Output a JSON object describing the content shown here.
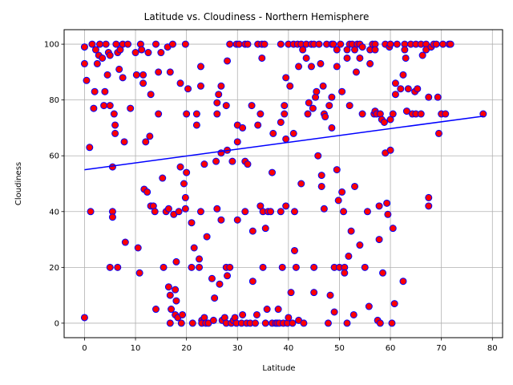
{
  "chart_data": {
    "type": "scatter",
    "title": "Latitude vs. Cloudiness - Northern Hemisphere",
    "xlabel": "Latitude",
    "ylabel": "Cloudiness",
    "xlim": [
      -4,
      82
    ],
    "ylim": [
      -5.2,
      105.2
    ],
    "xticks": [
      0,
      10,
      20,
      30,
      40,
      50,
      60,
      70,
      80
    ],
    "yticks": [
      0,
      20,
      40,
      60,
      80,
      100
    ],
    "grid": true,
    "marker_fill": "#ff0000",
    "marker_edge": "#0000ff",
    "line_color": "#0000ff",
    "regression": {
      "x": [
        0,
        78.2
      ],
      "y": [
        55,
        74.2
      ]
    },
    "points": [
      [
        0,
        99
      ],
      [
        0,
        93
      ],
      [
        0,
        2
      ],
      [
        0.4,
        87
      ],
      [
        1,
        63
      ],
      [
        1.2,
        40
      ],
      [
        1.5,
        100
      ],
      [
        1.8,
        77
      ],
      [
        2,
        83
      ],
      [
        2.2,
        98
      ],
      [
        2.5,
        93
      ],
      [
        2.8,
        96
      ],
      [
        3,
        100
      ],
      [
        3.5,
        95
      ],
      [
        3.8,
        78
      ],
      [
        4,
        83
      ],
      [
        4.2,
        100
      ],
      [
        4.5,
        89
      ],
      [
        4.7,
        97
      ],
      [
        5,
        96
      ],
      [
        5,
        78
      ],
      [
        5,
        20
      ],
      [
        5.5,
        56
      ],
      [
        5.5,
        40
      ],
      [
        5.5,
        38
      ],
      [
        5.8,
        75
      ],
      [
        6,
        71
      ],
      [
        6,
        68
      ],
      [
        6.2,
        100
      ],
      [
        6.5,
        97
      ],
      [
        6.5,
        20
      ],
      [
        6.8,
        91
      ],
      [
        7,
        98
      ],
      [
        7.5,
        100
      ],
      [
        7.5,
        88
      ],
      [
        7.8,
        65
      ],
      [
        8,
        29
      ],
      [
        8.5,
        100
      ],
      [
        9,
        77
      ],
      [
        10,
        97
      ],
      [
        10.2,
        89
      ],
      [
        10.5,
        27
      ],
      [
        10.8,
        18
      ],
      [
        11,
        100
      ],
      [
        11.2,
        98
      ],
      [
        11.5,
        89
      ],
      [
        11.5,
        86
      ],
      [
        11.7,
        48
      ],
      [
        12,
        65
      ],
      [
        12.3,
        47
      ],
      [
        12.5,
        97
      ],
      [
        12.8,
        67
      ],
      [
        13,
        82
      ],
      [
        13,
        42
      ],
      [
        13.5,
        42
      ],
      [
        13.8,
        40
      ],
      [
        14,
        100
      ],
      [
        14,
        5
      ],
      [
        14.5,
        90
      ],
      [
        14.5,
        75
      ],
      [
        15,
        97
      ],
      [
        15.3,
        52
      ],
      [
        15.5,
        20
      ],
      [
        16,
        40
      ],
      [
        16.3,
        99
      ],
      [
        16.5,
        41
      ],
      [
        16.8,
        90
      ],
      [
        16.5,
        13
      ],
      [
        16.8,
        10
      ],
      [
        16.8,
        0
      ],
      [
        17,
        5
      ],
      [
        17.3,
        100
      ],
      [
        17.5,
        39
      ],
      [
        17.8,
        12
      ],
      [
        17.8,
        3
      ],
      [
        18,
        22
      ],
      [
        18,
        8
      ],
      [
        18.3,
        2
      ],
      [
        18.5,
        40
      ],
      [
        18.8,
        86
      ],
      [
        18.8,
        56
      ],
      [
        19,
        0
      ],
      [
        19.2,
        3
      ],
      [
        19.5,
        50
      ],
      [
        19.8,
        45
      ],
      [
        19.8,
        41
      ],
      [
        19.8,
        100
      ],
      [
        20,
        75
      ],
      [
        20,
        54
      ],
      [
        20.3,
        84
      ],
      [
        21,
        36
      ],
      [
        21,
        20
      ],
      [
        21.2,
        0
      ],
      [
        21.5,
        27
      ],
      [
        22,
        75
      ],
      [
        22,
        71
      ],
      [
        22.5,
        23
      ],
      [
        22.5,
        20
      ],
      [
        22.8,
        92
      ],
      [
        22.8,
        85
      ],
      [
        22.8,
        40
      ],
      [
        23,
        1
      ],
      [
        23,
        0
      ],
      [
        23.5,
        2
      ],
      [
        23.5,
        57
      ],
      [
        23.8,
        0
      ],
      [
        24,
        31
      ],
      [
        24.3,
        0
      ],
      [
        25,
        16
      ],
      [
        25.3,
        1
      ],
      [
        25.5,
        9
      ],
      [
        25.8,
        58
      ],
      [
        26,
        79
      ],
      [
        26,
        75
      ],
      [
        26,
        41
      ],
      [
        26.3,
        82
      ],
      [
        26.5,
        14
      ],
      [
        26.8,
        85
      ],
      [
        26.8,
        61
      ],
      [
        26.8,
        37
      ],
      [
        27,
        1
      ],
      [
        27.5,
        2
      ],
      [
        27.8,
        0
      ],
      [
        27.8,
        78
      ],
      [
        27.8,
        20
      ],
      [
        28,
        94
      ],
      [
        28,
        62
      ],
      [
        28,
        17
      ],
      [
        28.5,
        100
      ],
      [
        28.5,
        20
      ],
      [
        28.8,
        0
      ],
      [
        29,
        58
      ],
      [
        29.2,
        1
      ],
      [
        29.5,
        2
      ],
      [
        29.8,
        0
      ],
      [
        29.8,
        100
      ],
      [
        30,
        71
      ],
      [
        30,
        65
      ],
      [
        30,
        37
      ],
      [
        30.3,
        100
      ],
      [
        30.8,
        0
      ],
      [
        31,
        70
      ],
      [
        31,
        3
      ],
      [
        31.5,
        100
      ],
      [
        31.5,
        58
      ],
      [
        31.5,
        40
      ],
      [
        31.8,
        0
      ],
      [
        32,
        57
      ],
      [
        32,
        100
      ],
      [
        32.5,
        0
      ],
      [
        32.8,
        78
      ],
      [
        33,
        33
      ],
      [
        33,
        15
      ],
      [
        33.5,
        0
      ],
      [
        33.8,
        3
      ],
      [
        34,
        100
      ],
      [
        34,
        71
      ],
      [
        34.5,
        75
      ],
      [
        34.5,
        42
      ],
      [
        34.8,
        95
      ],
      [
        34.8,
        100
      ],
      [
        35,
        40
      ],
      [
        35,
        20
      ],
      [
        35.3,
        100
      ],
      [
        35.5,
        34
      ],
      [
        35.5,
        0
      ],
      [
        35.8,
        5
      ],
      [
        36,
        40
      ],
      [
        36.5,
        40
      ],
      [
        36.8,
        54
      ],
      [
        36.8,
        0
      ],
      [
        37,
        68
      ],
      [
        37.5,
        0
      ],
      [
        37.8,
        0
      ],
      [
        38,
        5
      ],
      [
        38.2,
        0
      ],
      [
        38.5,
        100
      ],
      [
        38.5,
        72
      ],
      [
        38.5,
        40
      ],
      [
        38.8,
        20
      ],
      [
        39,
        0
      ],
      [
        39.2,
        78
      ],
      [
        39.2,
        75
      ],
      [
        39.5,
        88
      ],
      [
        39.5,
        66
      ],
      [
        39.5,
        42
      ],
      [
        39.8,
        0
      ],
      [
        40,
        2
      ],
      [
        40,
        100
      ],
      [
        40.3,
        85
      ],
      [
        40.5,
        11
      ],
      [
        40.8,
        0
      ],
      [
        41,
        100
      ],
      [
        41,
        68
      ],
      [
        41.2,
        40
      ],
      [
        41.2,
        26
      ],
      [
        41.5,
        20
      ],
      [
        41.8,
        100
      ],
      [
        42,
        92
      ],
      [
        42,
        1
      ],
      [
        42.5,
        100
      ],
      [
        42.5,
        50
      ],
      [
        42.8,
        98
      ],
      [
        43,
        0
      ],
      [
        43.5,
        95
      ],
      [
        43.5,
        100
      ],
      [
        43.8,
        75
      ],
      [
        44,
        79
      ],
      [
        44.5,
        92
      ],
      [
        44.5,
        100
      ],
      [
        44.8,
        77
      ],
      [
        45,
        100
      ],
      [
        45,
        20
      ],
      [
        45,
        11
      ],
      [
        45.3,
        81
      ],
      [
        45.5,
        83
      ],
      [
        45.8,
        60
      ],
      [
        46,
        100
      ],
      [
        46.3,
        93
      ],
      [
        46.5,
        53
      ],
      [
        46.5,
        49
      ],
      [
        46.8,
        85
      ],
      [
        47,
        75
      ],
      [
        47,
        41
      ],
      [
        47.2,
        74
      ],
      [
        47.5,
        100
      ],
      [
        47.8,
        0
      ],
      [
        48,
        78
      ],
      [
        48.2,
        10
      ],
      [
        48.5,
        100
      ],
      [
        48.5,
        81
      ],
      [
        48.5,
        70
      ],
      [
        48.8,
        100
      ],
      [
        49,
        4
      ],
      [
        49,
        20
      ],
      [
        49.5,
        98
      ],
      [
        49.5,
        92
      ],
      [
        49.5,
        55
      ],
      [
        49.8,
        44
      ],
      [
        50,
        20
      ],
      [
        50.2,
        100
      ],
      [
        50.5,
        83
      ],
      [
        50.5,
        47
      ],
      [
        50.8,
        40
      ],
      [
        51,
        20
      ],
      [
        51,
        18
      ],
      [
        51.5,
        98
      ],
      [
        51.5,
        95
      ],
      [
        51.5,
        0
      ],
      [
        51.8,
        24
      ],
      [
        52,
        78
      ],
      [
        52,
        100
      ],
      [
        52.3,
        33
      ],
      [
        52.5,
        100
      ],
      [
        52.8,
        3
      ],
      [
        53,
        49
      ],
      [
        53,
        98
      ],
      [
        53.3,
        90
      ],
      [
        53.5,
        100
      ],
      [
        54,
        28
      ],
      [
        54,
        100
      ],
      [
        54,
        95
      ],
      [
        54.5,
        75
      ],
      [
        54.5,
        99
      ],
      [
        55,
        20
      ],
      [
        55.5,
        40
      ],
      [
        55.8,
        6
      ],
      [
        56,
        93
      ],
      [
        56,
        98
      ],
      [
        56.5,
        100
      ],
      [
        56.8,
        75
      ],
      [
        57,
        76
      ],
      [
        57,
        100
      ],
      [
        57,
        98
      ],
      [
        57.3,
        75
      ],
      [
        57.5,
        1
      ],
      [
        57.8,
        30
      ],
      [
        57.8,
        42
      ],
      [
        58,
        75
      ],
      [
        58,
        0
      ],
      [
        58.3,
        73
      ],
      [
        58.5,
        18
      ],
      [
        58.8,
        72
      ],
      [
        59,
        61
      ],
      [
        59,
        100
      ],
      [
        59.3,
        43
      ],
      [
        59.5,
        39
      ],
      [
        59.8,
        99
      ],
      [
        60,
        73
      ],
      [
        60,
        62
      ],
      [
        60,
        100
      ],
      [
        60.3,
        0
      ],
      [
        60.5,
        75
      ],
      [
        60.5,
        34
      ],
      [
        60.8,
        7
      ],
      [
        61,
        82
      ],
      [
        61,
        86
      ],
      [
        61.3,
        100
      ],
      [
        62,
        84
      ],
      [
        62.5,
        89
      ],
      [
        62.5,
        15
      ],
      [
        62.8,
        100
      ],
      [
        62.8,
        98
      ],
      [
        63,
        95
      ],
      [
        63.2,
        76
      ],
      [
        63.5,
        84
      ],
      [
        64,
        100
      ],
      [
        64.3,
        75
      ],
      [
        64.8,
        83
      ],
      [
        65,
        100
      ],
      [
        65,
        75
      ],
      [
        65.3,
        84
      ],
      [
        66,
        100
      ],
      [
        66,
        75
      ],
      [
        66.3,
        96
      ],
      [
        67,
        100
      ],
      [
        67,
        98
      ],
      [
        67.5,
        81
      ],
      [
        67.5,
        45
      ],
      [
        67.5,
        42
      ],
      [
        68,
        99
      ],
      [
        68.5,
        100
      ],
      [
        69,
        100
      ],
      [
        69.3,
        81
      ],
      [
        69.5,
        68
      ],
      [
        70,
        75
      ],
      [
        70.3,
        100
      ],
      [
        70.8,
        75
      ],
      [
        71.5,
        100
      ],
      [
        71.8,
        100
      ],
      [
        78.2,
        75
      ]
    ]
  }
}
